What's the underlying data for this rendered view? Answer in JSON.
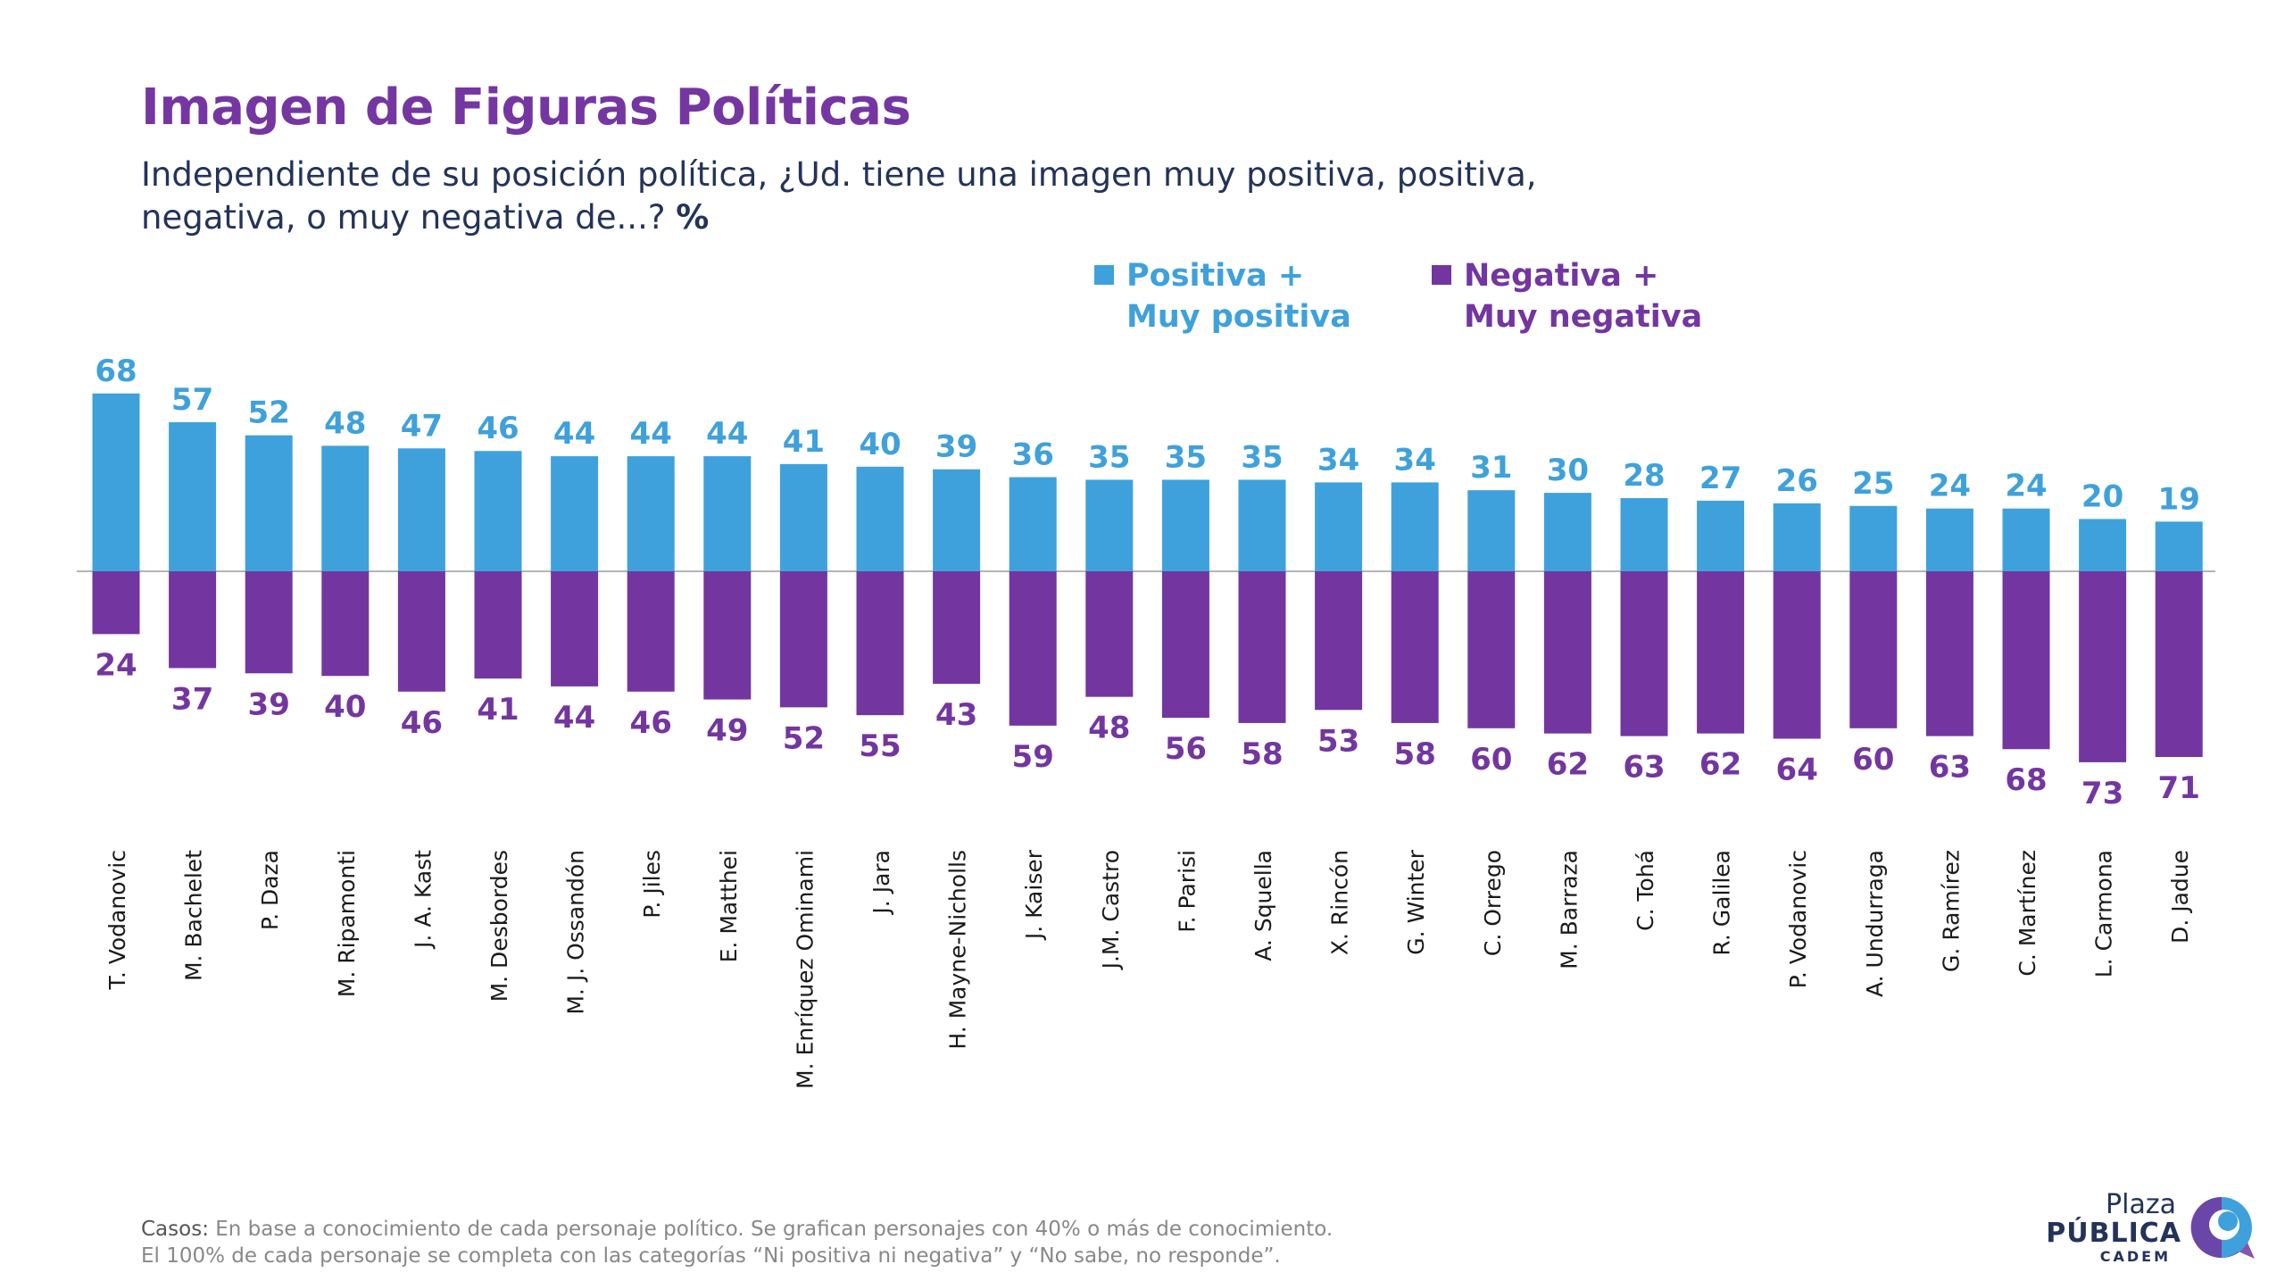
{
  "title": "Imagen de Figuras Políticas",
  "subtitle_text": "Independiente de su posición política, ¿Ud. tiene una imagen muy positiva, positiva, negativa, o muy negativa de...?",
  "subtitle_unit": "%",
  "legend": {
    "positive": "Positiva +\nMuy positiva",
    "negative": "Negativa +\nMuy negativa"
  },
  "colors": {
    "positive": "#3fa1db",
    "negative": "#7336a0",
    "title": "#7536a2",
    "text": "#23335a"
  },
  "footnote": {
    "line1_prefix": "Casos:",
    "line1": " En base a conocimiento de cada personaje político. Se grafican personajes con 40% o más de conocimiento.",
    "line2": "El 100% de cada personaje se completa con las categorías “Ni positiva ni negativa” y “No sabe, no responde”."
  },
  "logo": {
    "line1": "Plaza",
    "line2": "PÚBLICA",
    "line3": "CADEM"
  },
  "chart_data": {
    "type": "bar",
    "categories": [
      "T. Vodanovic",
      "M. Bachelet",
      "P. Daza",
      "M. Ripamonti",
      "J. A. Kast",
      "M. Desbordes",
      "M. J. Ossandón",
      "P. Jiles",
      "E. Matthei",
      "M. Enríquez Ominami",
      "J. Jara",
      "H. Mayne-Nicholls",
      "J. Kaiser",
      "J.M. Castro",
      "F. Parisi",
      "A. Squella",
      "X. Rincón",
      "G. Winter",
      "C. Orrego",
      "M. Barraza",
      "C. Tohá",
      "R. Galilea",
      "P. Vodanovic",
      "A. Undurraga",
      "G. Ramírez",
      "C. Martínez",
      "L. Carmona",
      "D. Jadue"
    ],
    "series": [
      {
        "name": "Positiva + Muy positiva",
        "values": [
          68,
          57,
          52,
          48,
          47,
          46,
          44,
          44,
          44,
          41,
          40,
          39,
          36,
          35,
          35,
          35,
          34,
          34,
          31,
          30,
          28,
          27,
          26,
          25,
          24,
          24,
          20,
          19
        ]
      },
      {
        "name": "Negativa + Muy negativa",
        "values": [
          24,
          37,
          39,
          40,
          46,
          41,
          44,
          46,
          49,
          52,
          55,
          43,
          59,
          48,
          56,
          58,
          53,
          58,
          60,
          62,
          63,
          62,
          64,
          60,
          63,
          68,
          73,
          71
        ]
      }
    ]
  }
}
